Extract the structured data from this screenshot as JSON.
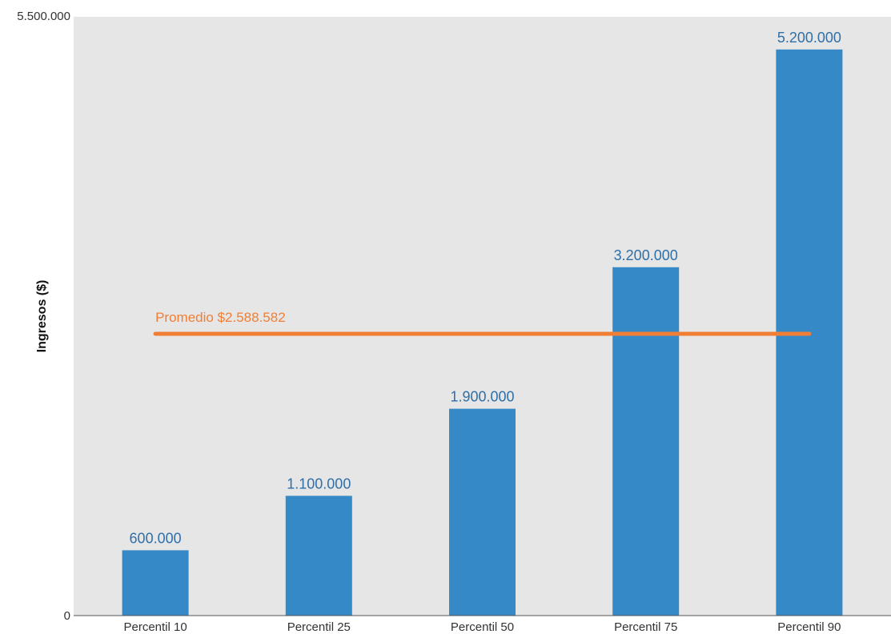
{
  "chart_data": {
    "type": "bar",
    "categories": [
      "Percentil 10",
      "Percentil 25",
      "Percentil 50",
      "Percentil 75",
      "Percentil 90"
    ],
    "values": [
      600000,
      1100000,
      1900000,
      3200000,
      5200000
    ],
    "value_labels": [
      "600.000",
      "1.100.000",
      "1.900.000",
      "3.200.000",
      "5.200.000"
    ],
    "ylabel": "Ingresos ($)",
    "ylim": [
      0,
      5500000
    ],
    "ytick_labels": [
      "0",
      "5.500.000"
    ],
    "reference_line": {
      "value": 2588582,
      "label": "Promedio $2.588.582",
      "color": "#f07f35"
    },
    "colors": {
      "bar": "#3589c6",
      "data_label": "#2f6fa8",
      "plot_background": "#e6e6e6"
    },
    "grid": false
  }
}
